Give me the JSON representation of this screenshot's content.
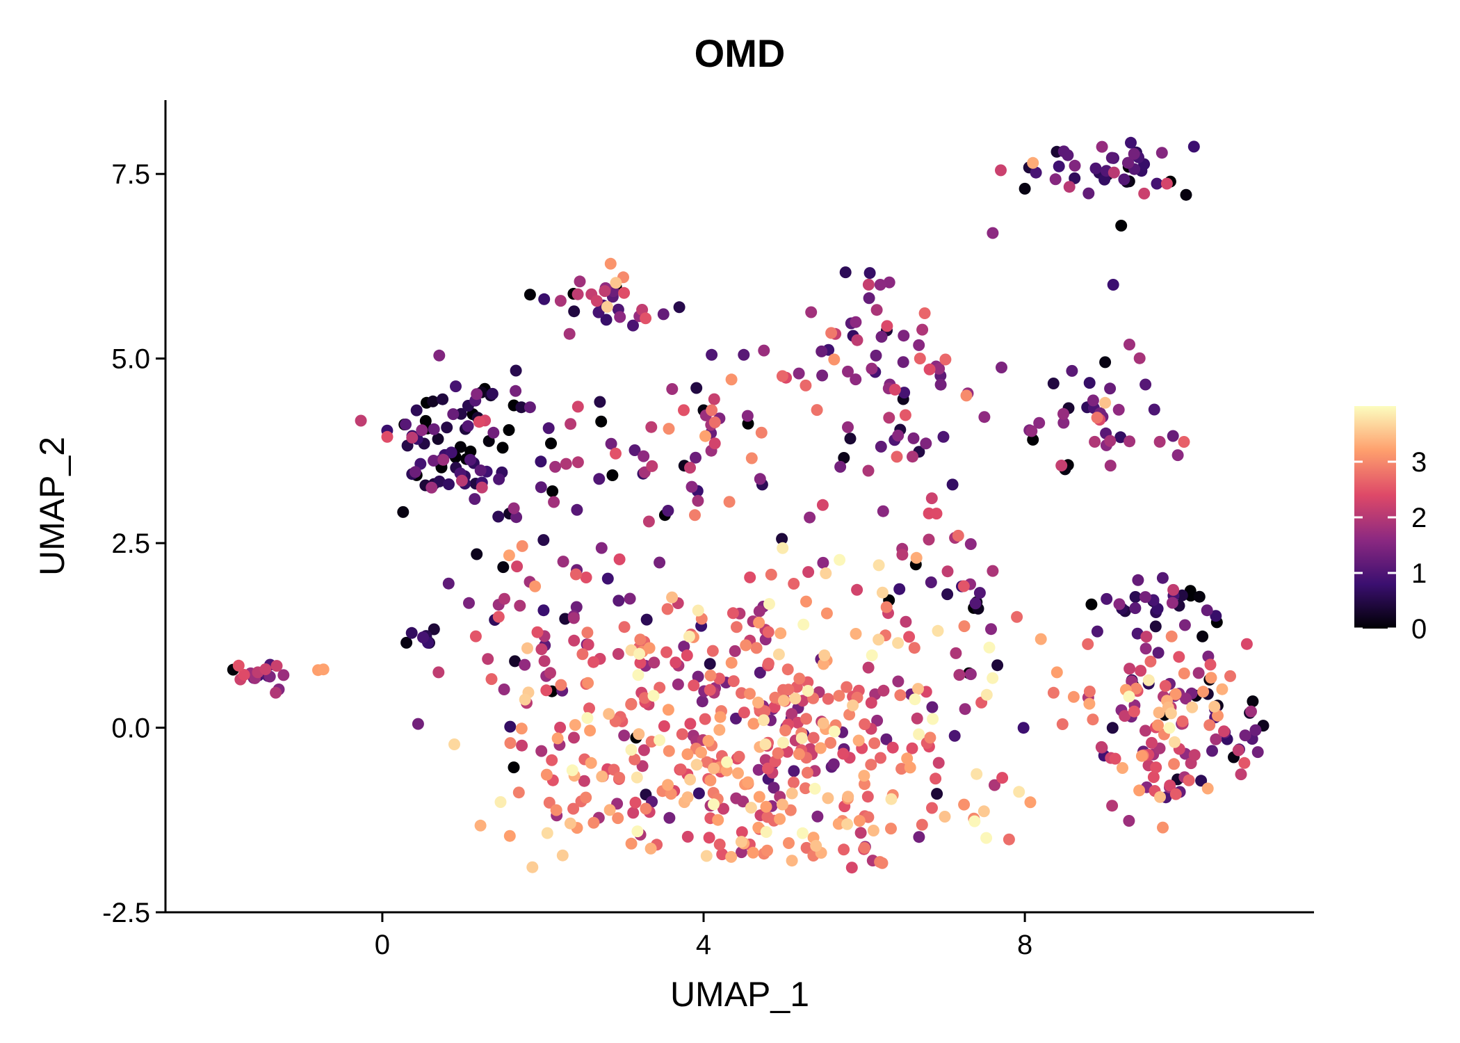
{
  "chart_data": {
    "type": "scatter",
    "title": "OMD",
    "xlabel": "UMAP_1",
    "ylabel": "UMAP_2",
    "xlim": [
      -2.7,
      11.6
    ],
    "ylim": [
      -2.5,
      8.5
    ],
    "x_ticks": [
      0,
      4,
      8
    ],
    "x_tick_labels": [
      "0",
      "4",
      "8"
    ],
    "y_ticks": [
      -2.5,
      0.0,
      2.5,
      5.0,
      7.5
    ],
    "y_tick_labels": [
      "-2.5",
      "0.0",
      "2.5",
      "5.0",
      "7.5"
    ],
    "grid": false,
    "legend_placement": "right",
    "color_scale": {
      "name": "magma",
      "range": [
        0,
        4
      ],
      "ticks": [
        0,
        1,
        2,
        3
      ],
      "tick_labels": [
        "0",
        "1",
        "2",
        "3"
      ],
      "stops": [
        "#000004",
        "#3b0f70",
        "#8c2981",
        "#de4968",
        "#fe9f6d",
        "#fcfdbf"
      ]
    },
    "clusters": [
      {
        "x": -1.6,
        "y": 0.65,
        "sx": 0.22,
        "sy": 0.12,
        "n": 18,
        "mean": 1.2,
        "sd": 0.6
      },
      {
        "x": -0.8,
        "y": 0.78,
        "sx": 0.05,
        "sy": 0.03,
        "n": 1,
        "mean": 3.2,
        "sd": 0.1
      },
      {
        "x": 0.8,
        "y": 3.8,
        "sx": 0.4,
        "sy": 0.4,
        "n": 70,
        "mean": 0.7,
        "sd": 0.6
      },
      {
        "x": 1.6,
        "y": 3.5,
        "sx": 0.5,
        "sy": 0.7,
        "n": 20,
        "mean": 1.1,
        "sd": 0.8
      },
      {
        "x": 2.8,
        "y": 5.8,
        "sx": 0.35,
        "sy": 0.25,
        "n": 28,
        "mean": 1.6,
        "sd": 0.8
      },
      {
        "x": 3.2,
        "y": 3.7,
        "sx": 0.6,
        "sy": 0.6,
        "n": 30,
        "mean": 1.4,
        "sd": 0.9
      },
      {
        "x": 4.2,
        "y": 4.2,
        "sx": 0.4,
        "sy": 0.3,
        "n": 16,
        "mean": 2.3,
        "sd": 0.9
      },
      {
        "x": 6.2,
        "y": 4.7,
        "sx": 0.55,
        "sy": 0.7,
        "n": 70,
        "mean": 1.5,
        "sd": 0.7
      },
      {
        "x": 9.0,
        "y": 7.6,
        "sx": 0.4,
        "sy": 0.2,
        "n": 42,
        "mean": 1.1,
        "sd": 0.6
      },
      {
        "x": 8.9,
        "y": 4.2,
        "sx": 0.45,
        "sy": 0.4,
        "n": 34,
        "mean": 1.3,
        "sd": 0.6
      },
      {
        "x": 0.6,
        "y": 1.2,
        "sx": 0.15,
        "sy": 0.1,
        "n": 8,
        "mean": 0.8,
        "sd": 0.5
      },
      {
        "x": 1.8,
        "y": 1.3,
        "sx": 0.5,
        "sy": 0.8,
        "n": 50,
        "mean": 1.8,
        "sd": 1.0
      },
      {
        "x": 4.9,
        "y": 0.2,
        "sx": 1.5,
        "sy": 1.1,
        "n": 380,
        "mean": 2.6,
        "sd": 0.8
      },
      {
        "x": 3.3,
        "y": -0.8,
        "sx": 1.0,
        "sy": 0.5,
        "n": 60,
        "mean": 3.1,
        "sd": 0.5
      },
      {
        "x": 5.4,
        "y": -1.5,
        "sx": 0.7,
        "sy": 0.3,
        "n": 40,
        "mean": 3.0,
        "sd": 0.5
      },
      {
        "x": 7.2,
        "y": 2.0,
        "sx": 0.4,
        "sy": 0.6,
        "n": 20,
        "mean": 1.2,
        "sd": 0.8
      },
      {
        "x": 9.7,
        "y": 1.6,
        "sx": 0.45,
        "sy": 0.25,
        "n": 30,
        "mean": 0.8,
        "sd": 0.6
      },
      {
        "x": 9.8,
        "y": 0.0,
        "sx": 0.5,
        "sy": 0.6,
        "n": 110,
        "mean": 2.3,
        "sd": 0.9
      },
      {
        "x": 10.8,
        "y": -0.1,
        "sx": 0.25,
        "sy": 0.3,
        "n": 16,
        "mean": 1.3,
        "sd": 0.6
      }
    ],
    "points": [
      [
        -1.55,
        0.75,
        2.1
      ],
      [
        -0.8,
        0.78,
        3.2
      ],
      [
        0.3,
        1.15,
        0.1
      ],
      [
        0.55,
        4.4,
        0.0
      ],
      [
        1.35,
        4.5,
        0.3
      ],
      [
        2.1,
        3.85,
        0.0
      ],
      [
        3.0,
        6.1,
        3.0
      ],
      [
        2.8,
        5.7,
        3.6
      ],
      [
        3.5,
        5.6,
        1.2
      ],
      [
        4.1,
        5.05,
        1.0
      ],
      [
        4.5,
        5.05,
        1.1
      ],
      [
        4.0,
        4.3,
        0.1
      ],
      [
        4.1,
        4.3,
        2.8
      ],
      [
        4.6,
        3.65,
        3.0
      ],
      [
        6.2,
        6.0,
        1.6
      ],
      [
        6.9,
        2.9,
        2.4
      ],
      [
        7.6,
        6.7,
        1.6
      ],
      [
        7.7,
        7.55,
        2.2
      ],
      [
        8.0,
        7.3,
        0.1
      ],
      [
        8.1,
        7.65,
        3.3
      ],
      [
        9.1,
        6.0,
        0.8
      ],
      [
        9.3,
        7.4,
        0.1
      ],
      [
        9.2,
        6.8,
        0.0
      ],
      [
        9.0,
        4.95,
        0.1
      ],
      [
        9.0,
        4.4,
        3.5
      ],
      [
        8.9,
        4.2,
        2.8
      ],
      [
        8.5,
        3.5,
        0.1
      ],
      [
        8.1,
        3.9,
        0.0
      ],
      [
        7.4,
        1.7,
        0.2
      ],
      [
        8.4,
        0.75,
        3.2
      ],
      [
        8.2,
        1.2,
        3.3
      ],
      [
        7.9,
        1.5,
        2.7
      ],
      [
        9.9,
        -0.7,
        0.3
      ],
      [
        10.6,
        -0.4,
        0.1
      ],
      [
        10.4,
        0.3,
        0.2
      ],
      [
        10.3,
        0.65,
        0.1
      ],
      [
        10.8,
        0.2,
        0.3
      ],
      [
        5.1,
        -1.8,
        3.4
      ],
      [
        5.4,
        -1.6,
        3.5
      ],
      [
        3.1,
        -0.3,
        3.9
      ],
      [
        3.2,
        1.0,
        3.9
      ],
      [
        3.1,
        1.05,
        3.7
      ],
      [
        5.3,
        0.5,
        3.9
      ],
      [
        0.7,
        0.75,
        2.1
      ]
    ]
  }
}
